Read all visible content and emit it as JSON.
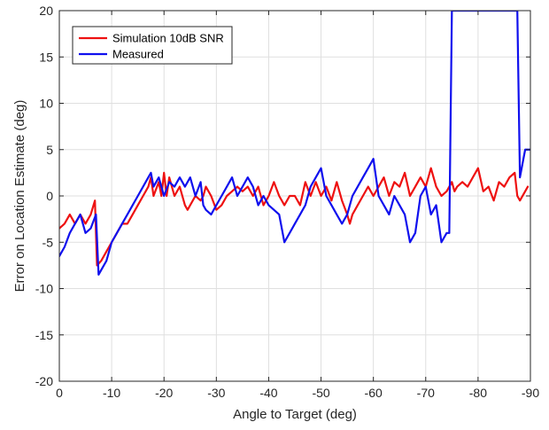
{
  "chart_data": {
    "type": "line",
    "title": "",
    "xlabel": "Angle to Target (deg)",
    "ylabel": "Error on Location Estimate (deg)",
    "xlim": [
      0,
      -90
    ],
    "ylim": [
      -20,
      20
    ],
    "x_ticks": [
      0,
      -10,
      -20,
      -30,
      -40,
      -50,
      -60,
      -70,
      -80,
      -90
    ],
    "y_ticks": [
      -20,
      -15,
      -10,
      -5,
      0,
      5,
      10,
      15,
      20
    ],
    "grid": true,
    "legend_position": "top-left",
    "series": [
      {
        "name": "Simulation 10dB SNR",
        "color": "#ee1111",
        "points": [
          [
            0,
            -3.5
          ],
          [
            -1,
            -3
          ],
          [
            -2,
            -2
          ],
          [
            -3,
            -3
          ],
          [
            -4,
            -2
          ],
          [
            -5,
            -3
          ],
          [
            -6,
            -2
          ],
          [
            -6.8,
            -0.5
          ],
          [
            -7.2,
            -7.5
          ],
          [
            -8,
            -7
          ],
          [
            -9,
            -6
          ],
          [
            -10,
            -5
          ],
          [
            -11,
            -4
          ],
          [
            -12,
            -3
          ],
          [
            -13,
            -3
          ],
          [
            -14,
            -2
          ],
          [
            -15,
            -1
          ],
          [
            -16,
            0
          ],
          [
            -17,
            1
          ],
          [
            -17.5,
            2
          ],
          [
            -18,
            0
          ],
          [
            -19,
            1.5
          ],
          [
            -19.5,
            0
          ],
          [
            -20,
            2.5
          ],
          [
            -20.5,
            0
          ],
          [
            -21,
            2
          ],
          [
            -22,
            0
          ],
          [
            -23,
            1
          ],
          [
            -24,
            -1
          ],
          [
            -24.5,
            -1.5
          ],
          [
            -25,
            -1
          ],
          [
            -26,
            0
          ],
          [
            -27,
            -0.5
          ],
          [
            -27.5,
            0
          ],
          [
            -28,
            1
          ],
          [
            -29,
            0
          ],
          [
            -30,
            -1.5
          ],
          [
            -31,
            -1
          ],
          [
            -32,
            0
          ],
          [
            -33,
            0.5
          ],
          [
            -34,
            1
          ],
          [
            -35,
            0.5
          ],
          [
            -36,
            1
          ],
          [
            -37,
            0
          ],
          [
            -38,
            1
          ],
          [
            -39,
            -1
          ],
          [
            -40,
            0
          ],
          [
            -41,
            1.5
          ],
          [
            -42,
            0
          ],
          [
            -43,
            -1
          ],
          [
            -44,
            0
          ],
          [
            -45,
            0
          ],
          [
            -46,
            -1
          ],
          [
            -47,
            1.5
          ],
          [
            -48,
            0
          ],
          [
            -49,
            1.5
          ],
          [
            -50,
            0
          ],
          [
            -51,
            1
          ],
          [
            -52,
            -0.5
          ],
          [
            -53,
            1.5
          ],
          [
            -54,
            -0.5
          ],
          [
            -55,
            -2
          ],
          [
            -55.5,
            -3
          ],
          [
            -56,
            -2
          ],
          [
            -57,
            -1
          ],
          [
            -58,
            0
          ],
          [
            -59,
            1
          ],
          [
            -60,
            0
          ],
          [
            -61,
            1
          ],
          [
            -62,
            2
          ],
          [
            -63,
            0
          ],
          [
            -64,
            1.5
          ],
          [
            -65,
            1
          ],
          [
            -66,
            2.5
          ],
          [
            -67,
            0
          ],
          [
            -68,
            1
          ],
          [
            -69,
            2
          ],
          [
            -70,
            1
          ],
          [
            -71,
            3
          ],
          [
            -72,
            1
          ],
          [
            -73,
            0
          ],
          [
            -74,
            0.5
          ],
          [
            -75,
            1.5
          ],
          [
            -75.5,
            0.5
          ],
          [
            -76,
            1
          ],
          [
            -77,
            1.5
          ],
          [
            -78,
            1
          ],
          [
            -79,
            2
          ],
          [
            -80,
            3
          ],
          [
            -81,
            0.5
          ],
          [
            -82,
            1
          ],
          [
            -83,
            -0.5
          ],
          [
            -84,
            1.5
          ],
          [
            -85,
            1
          ],
          [
            -86,
            2
          ],
          [
            -87,
            2.5
          ],
          [
            -87.5,
            0
          ],
          [
            -88,
            -0.5
          ],
          [
            -89,
            0.5
          ],
          [
            -89.5,
            1
          ]
        ]
      },
      {
        "name": "Measured",
        "color": "#1010ee",
        "points": [
          [
            0,
            -6.5
          ],
          [
            -1,
            -5.5
          ],
          [
            -2,
            -4
          ],
          [
            -3,
            -3
          ],
          [
            -4,
            -2
          ],
          [
            -5,
            -4
          ],
          [
            -6,
            -3.5
          ],
          [
            -7,
            -2
          ],
          [
            -7.5,
            -8.5
          ],
          [
            -8,
            -8
          ],
          [
            -9,
            -7
          ],
          [
            -10,
            -5
          ],
          [
            -11,
            -4
          ],
          [
            -12,
            -3
          ],
          [
            -13,
            -2
          ],
          [
            -14,
            -1
          ],
          [
            -15,
            0
          ],
          [
            -16,
            1
          ],
          [
            -17,
            2
          ],
          [
            -17.5,
            2.5
          ],
          [
            -18,
            1
          ],
          [
            -19,
            2
          ],
          [
            -20,
            0
          ],
          [
            -21,
            1.5
          ],
          [
            -22,
            1
          ],
          [
            -23,
            2
          ],
          [
            -24,
            1
          ],
          [
            -25,
            2
          ],
          [
            -26,
            0
          ],
          [
            -27,
            1.5
          ],
          [
            -27.5,
            -1
          ],
          [
            -28,
            -1.5
          ],
          [
            -29,
            -2
          ],
          [
            -30,
            -1
          ],
          [
            -31,
            0
          ],
          [
            -32,
            1
          ],
          [
            -33,
            2
          ],
          [
            -34,
            0
          ],
          [
            -35,
            1
          ],
          [
            -36,
            2
          ],
          [
            -37,
            1
          ],
          [
            -38,
            -1
          ],
          [
            -39,
            0
          ],
          [
            -40,
            -1
          ],
          [
            -41,
            -1.5
          ],
          [
            -42,
            -2
          ],
          [
            -43,
            -5
          ],
          [
            -44,
            -4
          ],
          [
            -45,
            -3
          ],
          [
            -46,
            -2
          ],
          [
            -47,
            -1
          ],
          [
            -48,
            1
          ],
          [
            -49,
            2
          ],
          [
            -50,
            3
          ],
          [
            -51,
            0
          ],
          [
            -52,
            -1
          ],
          [
            -53,
            -2
          ],
          [
            -54,
            -3
          ],
          [
            -55,
            -2
          ],
          [
            -56,
            0
          ],
          [
            -57,
            1
          ],
          [
            -58,
            2
          ],
          [
            -59,
            3
          ],
          [
            -60,
            4
          ],
          [
            -61,
            0
          ],
          [
            -62,
            -1
          ],
          [
            -63,
            -2
          ],
          [
            -64,
            0
          ],
          [
            -65,
            -1
          ],
          [
            -66,
            -2
          ],
          [
            -67,
            -5
          ],
          [
            -68,
            -4
          ],
          [
            -69,
            0
          ],
          [
            -70,
            1
          ],
          [
            -71,
            -2
          ],
          [
            -72,
            -1
          ],
          [
            -73,
            -5
          ],
          [
            -74,
            -4
          ],
          [
            -74.5,
            -4
          ],
          [
            -75,
            20
          ],
          [
            -76,
            20
          ],
          [
            -87.5,
            20
          ],
          [
            -88,
            2
          ],
          [
            -89,
            5
          ],
          [
            -90,
            5
          ]
        ]
      }
    ]
  }
}
